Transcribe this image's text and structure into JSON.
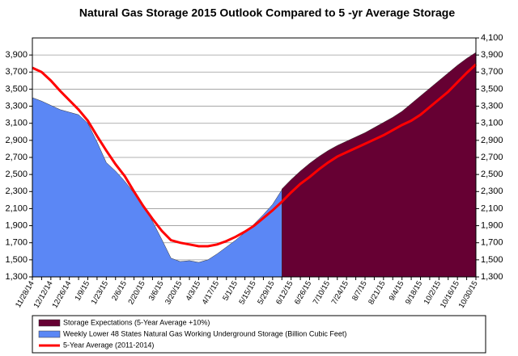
{
  "chart_data": {
    "type": "area",
    "title": "Natural Gas Storage 2015 Outlook Compared to 5 -yr Average Storage",
    "categories": [
      "11/28/14",
      null,
      "12/12/14",
      null,
      "12/26/14",
      null,
      "1/9/15",
      null,
      "1/23/15",
      null,
      "2/6/15",
      null,
      "2/20/15",
      null,
      "3/6/15",
      null,
      "3/20/15",
      null,
      "4/3/15",
      null,
      "4/17/15",
      null,
      "5/1/15",
      null,
      "5/15/15",
      null,
      "5/29/15",
      null,
      "6/12/15",
      null,
      "6/26/15",
      null,
      "7/10/15",
      null,
      "7/24/15",
      null,
      "8/7/15",
      null,
      "8/21/15",
      null,
      "9/4/15",
      null,
      "9/18/15",
      null,
      "10/2/15",
      null,
      "10/16/15",
      null,
      "10/30/15"
    ],
    "series": [
      {
        "name": "Storage Expectations (5-Year Average +10%)",
        "color": "#660033",
        "type": "area",
        "axis": "y2",
        "values": [
          null,
          null,
          null,
          null,
          null,
          null,
          null,
          null,
          null,
          null,
          null,
          null,
          null,
          null,
          null,
          null,
          null,
          null,
          null,
          null,
          null,
          null,
          null,
          null,
          null,
          null,
          null,
          2330,
          2440,
          2540,
          2630,
          2710,
          2780,
          2840,
          2890,
          2940,
          2990,
          3050,
          3110,
          3170,
          3240,
          3330,
          3420,
          3510,
          3600,
          3690,
          3780,
          3860,
          3930
        ]
      },
      {
        "name": "Weekly Lower 48 States Natural Gas Working Underground Storage  (Billion Cubic Feet)",
        "color": "#5b87f5",
        "type": "area",
        "values": [
          3400,
          3360,
          3310,
          3260,
          3230,
          3200,
          3100,
          2880,
          2640,
          2540,
          2420,
          2280,
          2150,
          1950,
          1740,
          1520,
          1480,
          1490,
          1470,
          1500,
          1570,
          1650,
          1730,
          1820,
          1920,
          2030,
          2150,
          2320,
          null,
          null,
          null,
          null,
          null,
          null,
          null,
          null,
          null,
          null,
          null,
          null,
          null,
          null,
          null,
          null,
          null,
          null,
          null,
          null,
          null
        ]
      },
      {
        "name": "5-Year Average (2011-2014)",
        "color": "#ff0000",
        "type": "line",
        "values": [
          3750,
          3700,
          3600,
          3480,
          3370,
          3260,
          3130,
          2950,
          2780,
          2620,
          2480,
          2300,
          2130,
          1980,
          1840,
          1730,
          1700,
          1680,
          1660,
          1660,
          1680,
          1720,
          1770,
          1830,
          1900,
          1990,
          2080,
          2180,
          2290,
          2390,
          2470,
          2560,
          2640,
          2710,
          2760,
          2810,
          2860,
          2910,
          2960,
          3020,
          3080,
          3130,
          3200,
          3290,
          3380,
          3470,
          3580,
          3690,
          3790
        ]
      }
    ],
    "ylim": [
      1300,
      4100
    ],
    "yticks": [
      {
        "value": 1300,
        "label": "1,300"
      },
      {
        "value": 1500,
        "label": "1,500"
      },
      {
        "value": 1700,
        "label": "1,700"
      },
      {
        "value": 1900,
        "label": "1,900"
      },
      {
        "value": 2100,
        "label": "2,100"
      },
      {
        "value": 2300,
        "label": "2,300"
      },
      {
        "value": 2500,
        "label": "2,500"
      },
      {
        "value": 2700,
        "label": "2,700"
      },
      {
        "value": 2900,
        "label": "2,900"
      },
      {
        "value": 3100,
        "label": "3,100"
      },
      {
        "value": 3300,
        "label": "3,300"
      },
      {
        "value": 3500,
        "label": "3,500"
      },
      {
        "value": 3700,
        "label": "3,700"
      },
      {
        "value": 3900,
        "label": "3,900"
      }
    ],
    "y2lim": [
      1300,
      4100
    ],
    "y2ticks": [
      {
        "value": 1300,
        "label": "1,300"
      },
      {
        "value": 1500,
        "label": "1,500"
      },
      {
        "value": 1700,
        "label": "1,700"
      },
      {
        "value": 1900,
        "label": "1,900"
      },
      {
        "value": 2100,
        "label": "2,100"
      },
      {
        "value": 2300,
        "label": "2,300"
      },
      {
        "value": 2500,
        "label": "2,500"
      },
      {
        "value": 2700,
        "label": "2,700"
      },
      {
        "value": 2900,
        "label": "2,900"
      },
      {
        "value": 3100,
        "label": "3,100"
      },
      {
        "value": 3300,
        "label": "3,300"
      },
      {
        "value": 3500,
        "label": "3,500"
      },
      {
        "value": 3700,
        "label": "3,700"
      },
      {
        "value": 3900,
        "label": "3,900"
      },
      {
        "value": 4100,
        "label": "4,100"
      }
    ],
    "grid": true,
    "legend": "bottom"
  }
}
